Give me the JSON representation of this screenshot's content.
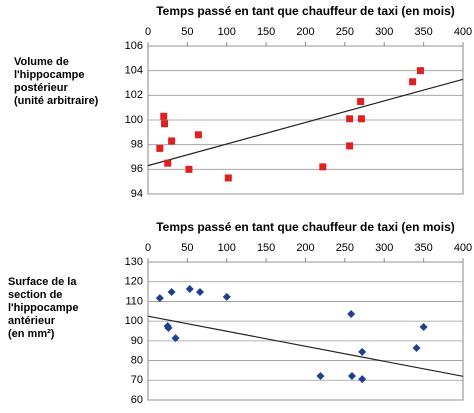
{
  "chart_data": [
    {
      "type": "scatter",
      "title": "Temps passé en tant que chauffeur de taxi (en mois)",
      "y_label": [
        "Volume de",
        "l'hippocampe",
        "postérieur",
        "(unité arbitraire)"
      ],
      "x": [
        15,
        20,
        21,
        25,
        30,
        52,
        64,
        102,
        222,
        256,
        256,
        270,
        271,
        336,
        346
      ],
      "values": [
        97.7,
        100.3,
        99.7,
        96.5,
        98.3,
        96.0,
        98.8,
        95.3,
        96.2,
        100.1,
        97.9,
        101.5,
        100.1,
        103.1,
        104.0
      ],
      "color": "#e02020",
      "marker": "square",
      "trend": {
        "x": [
          0,
          400
        ],
        "y": [
          96.3,
          103.3
        ]
      },
      "xlim": [
        0,
        400
      ],
      "xticks": [
        0,
        50,
        100,
        150,
        200,
        250,
        300,
        350,
        400
      ],
      "ylim": [
        94,
        106
      ],
      "yticks": [
        94,
        96,
        98,
        100,
        102,
        104,
        106
      ],
      "grid": true
    },
    {
      "type": "scatter",
      "title": "Temps passé en tant que chauffeur de taxi (en mois)",
      "y_label": [
        "Surface de la",
        "section de",
        "l'hippocampe",
        "antérieur",
        "(en mm²)"
      ],
      "x": [
        15,
        30,
        25,
        26,
        35,
        53,
        66,
        100,
        219,
        258,
        259,
        272,
        272,
        341,
        350
      ],
      "values": [
        111.7,
        114.8,
        97.5,
        96.5,
        91.4,
        116.3,
        114.8,
        112.3,
        72.2,
        103.6,
        72.2,
        70.6,
        84.4,
        86.4,
        97
      ],
      "color": "#1f3f8f",
      "marker": "diamond",
      "trend": {
        "x": [
          0,
          400
        ],
        "y": [
          102.5,
          72
        ]
      },
      "xlim": [
        0,
        400
      ],
      "xticks": [
        0,
        50,
        100,
        150,
        200,
        250,
        300,
        350,
        400
      ],
      "ylim": [
        60,
        130
      ],
      "yticks": [
        60,
        70,
        80,
        90,
        100,
        110,
        120,
        130
      ],
      "grid": true
    }
  ]
}
